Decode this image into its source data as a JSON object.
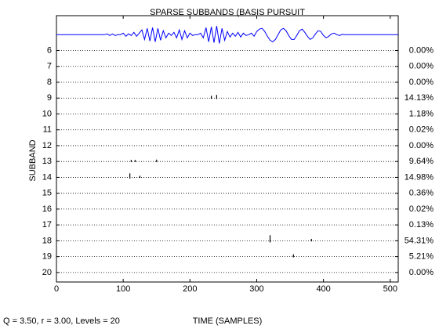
{
  "chart_data": {
    "type": "subband",
    "title": "SPARSE SUBBANDS (BASIS PURSUIT",
    "x_label": "TIME (SAMPLES)",
    "y_label": "SUBBAND",
    "annotation": "Q = 3.50, r = 3.00, Levels = 20",
    "xlim": [
      0,
      512
    ],
    "xticks": [
      0,
      100,
      200,
      300,
      400,
      500
    ],
    "ylim": [
      3.8,
      20.6
    ],
    "y_reversed": true,
    "yticks": [
      6,
      7,
      8,
      9,
      10,
      11,
      12,
      13,
      14,
      15,
      16,
      17,
      18,
      19,
      20
    ],
    "categories": [
      6,
      7,
      8,
      9,
      10,
      11,
      12,
      13,
      14,
      15,
      16,
      17,
      18,
      19,
      20
    ],
    "values": [
      0,
      0,
      0,
      14.13,
      1.18,
      0.02,
      0,
      9.64,
      14.98,
      0.36,
      0.02,
      0.13,
      54.31,
      5.21,
      0
    ],
    "value_labels": [
      "0.00%",
      "0.00%",
      "0.00%",
      "14.13%",
      "1.18%",
      "0.02%",
      "0.00%",
      "9.64%",
      "14.98%",
      "0.36%",
      "0.02%",
      "0.13%",
      "54.31%",
      "5.21%",
      "0.00%"
    ],
    "signal": {
      "color": "#0000ff",
      "x": [
        0,
        60,
        64,
        68,
        72,
        76,
        80,
        84,
        88,
        92,
        96,
        100,
        104,
        108,
        112,
        116,
        120,
        124,
        128,
        132,
        136,
        140,
        144,
        148,
        152,
        156,
        160,
        164,
        168,
        172,
        176,
        180,
        184,
        188,
        192,
        196,
        200,
        204,
        208,
        212,
        216,
        220,
        224,
        228,
        232,
        236,
        240,
        244,
        248,
        252,
        256,
        260,
        264,
        268,
        272,
        276,
        280,
        284,
        288,
        292,
        296,
        300,
        304,
        308,
        312,
        316,
        320,
        324,
        328,
        332,
        336,
        340,
        344,
        348,
        352,
        356,
        360,
        364,
        368,
        372,
        376,
        380,
        384,
        388,
        392,
        396,
        400,
        404,
        408,
        412,
        416,
        420,
        424,
        428,
        432,
        436,
        440,
        444,
        448,
        452,
        456,
        460,
        464,
        512
      ],
      "values": [
        5,
        5,
        5,
        5,
        5,
        4.95,
        5.05,
        4.95,
        5.05,
        5,
        5,
        4.9,
        5.1,
        4.95,
        5.05,
        4.85,
        5.1,
        4.9,
        4.7,
        5.3,
        4.6,
        5.4,
        4.55,
        5.45,
        4.6,
        5.35,
        4.75,
        5.2,
        4.9,
        5.05,
        4.85,
        5.2,
        4.7,
        5.3,
        4.75,
        5.2,
        4.9,
        5.05,
        5,
        5,
        4.9,
        5.2,
        4.55,
        5.45,
        4.5,
        5.5,
        4.45,
        5.55,
        4.6,
        5.35,
        4.8,
        5.15,
        4.9,
        5.1,
        4.85,
        5.15,
        4.9,
        5.05,
        5,
        4.9,
        5.1,
        4.8,
        4.65,
        4.6,
        4.8,
        5.1,
        5.35,
        5.45,
        5.3,
        5,
        4.7,
        4.6,
        4.75,
        5.05,
        5.3,
        5.3,
        5.05,
        4.75,
        4.65,
        4.85,
        5.1,
        5.3,
        5.2,
        4.95,
        4.75,
        4.8,
        5.05,
        5.2,
        5.1,
        4.95,
        4.9,
        5,
        5.05,
        4.98,
        5,
        5,
        5,
        5,
        5,
        5,
        5,
        5,
        5,
        5
      ]
    },
    "spikes": [
      {
        "subband": 9,
        "x": 232,
        "amplitude": 0.15
      },
      {
        "subband": 9,
        "x": 240,
        "amplitude": 0.2
      },
      {
        "subband": 13,
        "x": 112,
        "amplitude": 0.1
      },
      {
        "subband": 13,
        "x": 118,
        "amplitude": 0.1
      },
      {
        "subband": 13,
        "x": 150,
        "amplitude": 0.12
      },
      {
        "subband": 14,
        "x": 110,
        "amplitude": 0.25
      },
      {
        "subband": 14,
        "x": 125,
        "amplitude": 0.1
      },
      {
        "subband": 18,
        "x": 320,
        "amplitude": 0.35
      },
      {
        "subband": 18,
        "x": 382,
        "amplitude": 0.12
      },
      {
        "subband": 19,
        "x": 355,
        "amplitude": 0.15
      }
    ]
  }
}
